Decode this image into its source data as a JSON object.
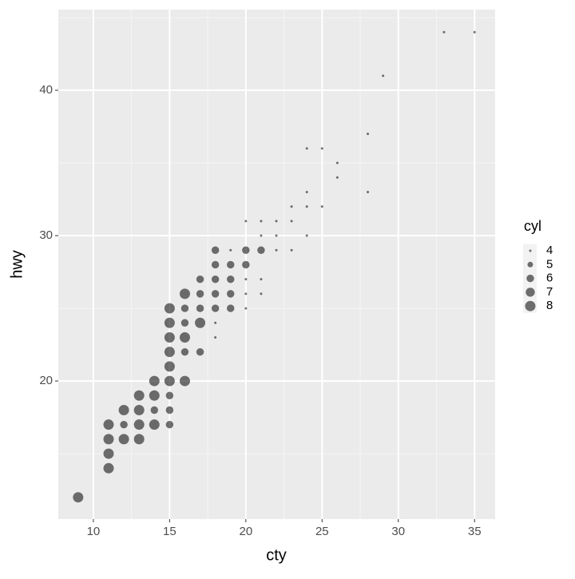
{
  "chart_data": {
    "type": "scatter",
    "x_label": "cty",
    "y_label": "hwy",
    "color": "#000000",
    "grid": true,
    "xlim": [
      7.7,
      36.35
    ],
    "ylim": [
      10.5,
      45.55
    ],
    "xticks": [
      10,
      15,
      20,
      25,
      30,
      35
    ],
    "yticks": [
      20,
      30,
      40
    ],
    "x": [
      9,
      11,
      11,
      11,
      11,
      12,
      12,
      12,
      13,
      13,
      13,
      13,
      14,
      14,
      14,
      14,
      15,
      15,
      15,
      15,
      15,
      15,
      15,
      15,
      15,
      16,
      16,
      16,
      16,
      16,
      16,
      17,
      17,
      17,
      17,
      17,
      18,
      18,
      18,
      18,
      18,
      18,
      18,
      19,
      19,
      19,
      19,
      19,
      20,
      20,
      20,
      20,
      20,
      20,
      21,
      21,
      21,
      21,
      21,
      22,
      22,
      22,
      23,
      23,
      23,
      24,
      24,
      24,
      24,
      25,
      25,
      26,
      26,
      28,
      28,
      29,
      33,
      35
    ],
    "y": [
      12,
      14,
      15,
      16,
      17,
      16,
      17,
      18,
      16,
      17,
      18,
      19,
      17,
      18,
      19,
      20,
      17,
      18,
      19,
      20,
      21,
      22,
      23,
      24,
      25,
      20,
      22,
      23,
      24,
      25,
      26,
      22,
      24,
      25,
      26,
      27,
      23,
      24,
      25,
      26,
      27,
      28,
      29,
      25,
      26,
      27,
      28,
      29,
      25,
      26,
      27,
      28,
      29,
      31,
      26,
      27,
      29,
      30,
      31,
      29,
      30,
      31,
      29,
      31,
      32,
      30,
      32,
      33,
      36,
      32,
      36,
      34,
      35,
      33,
      37,
      41,
      44,
      44
    ],
    "size": [
      8,
      8,
      8,
      8,
      8,
      8,
      6,
      8,
      8,
      8,
      8,
      8,
      8,
      6,
      8,
      8,
      6,
      6,
      6,
      8,
      8,
      8,
      8,
      8,
      8,
      8,
      6,
      8,
      6,
      6,
      8,
      6,
      8,
      6,
      6,
      6,
      4,
      4,
      6,
      6,
      6,
      6,
      6,
      6,
      6,
      6,
      6,
      4,
      4,
      4,
      4,
      6,
      6,
      4,
      4,
      4,
      6,
      4,
      4,
      4,
      4,
      4,
      4,
      4,
      4,
      4,
      4,
      4,
      4,
      4,
      4,
      4,
      4,
      4,
      4,
      4,
      4,
      4
    ],
    "size_legend_title": "cyl",
    "size_legend": [
      4,
      5,
      6,
      7,
      8
    ]
  }
}
